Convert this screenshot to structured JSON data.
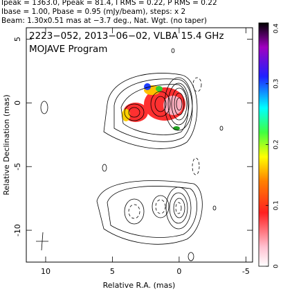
{
  "chart_data": {
    "type": "contour",
    "header": [
      "Ipeak = 1363.0, Ppeak = 81.4, I RMS = 0.22, P RMS = 0.22",
      "Ibase = 1.00, Pbase = 0.95 (mJy/beam), steps: x 2",
      "Beam: 1.30x0.51 mas at −3.7 deg., Nat. Wgt. (no taper)"
    ],
    "annotations": [
      "2223−052, 2013−06−02, VLBA 15.4 GHz",
      "MOJAVE Program"
    ],
    "x_label": "Relative R.A. (mas)",
    "y_label": "Relative Declination (mas)",
    "xlim": [
      11.45,
      -5.5
    ],
    "xticks": [
      10,
      5,
      0,
      -5
    ],
    "ylim": [
      -12.5,
      5.9
    ],
    "yticks": [
      5,
      0,
      -5,
      -10
    ],
    "colorbar": {
      "lim": [
        0,
        0.4
      ],
      "ticks": [
        0,
        0.1,
        0.2,
        0.3,
        0.4
      ]
    }
  }
}
